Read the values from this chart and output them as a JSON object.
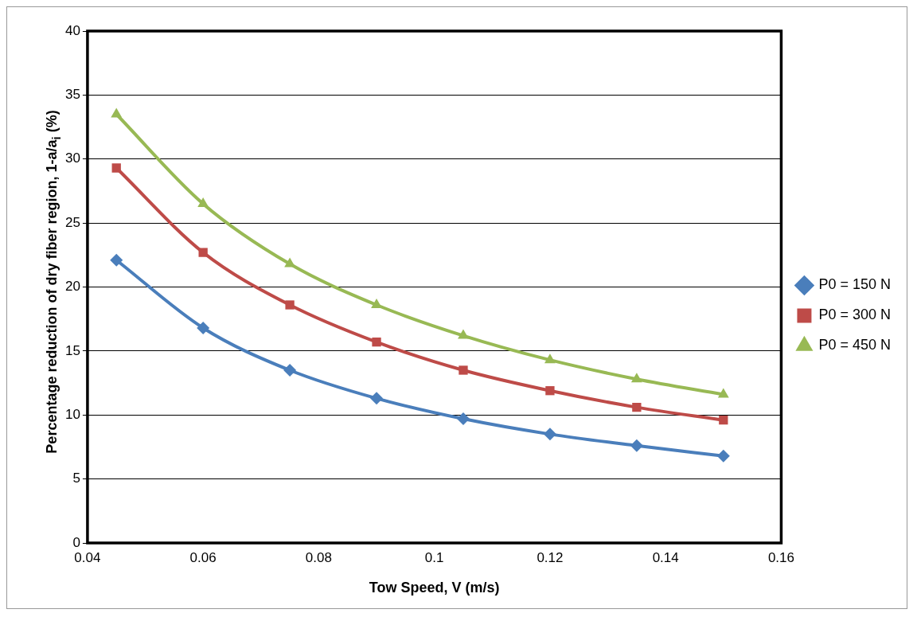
{
  "chart_data": {
    "type": "line",
    "xlabel": "Tow Speed, V (m/s)",
    "ylabel": "Percentage reduction of dry fiber region, 1-a/a$_{i}$ (%)",
    "x": [
      0.045,
      0.06,
      0.075,
      0.09,
      0.105,
      0.12,
      0.135,
      0.15
    ],
    "series": [
      {
        "name": "P0 = 150 N",
        "color": "#4a7ebb",
        "marker": "diamond",
        "values": [
          22.1,
          16.8,
          13.5,
          11.3,
          9.7,
          8.5,
          7.6,
          6.8
        ]
      },
      {
        "name": "P0 = 300 N",
        "color": "#be4b48",
        "marker": "square",
        "values": [
          29.3,
          22.7,
          18.6,
          15.7,
          13.5,
          11.9,
          10.6,
          9.6
        ]
      },
      {
        "name": "P0 = 450 N",
        "color": "#98b954",
        "marker": "triangle",
        "values": [
          33.5,
          26.5,
          21.8,
          18.6,
          16.2,
          14.3,
          12.8,
          11.6
        ]
      }
    ],
    "xlim": [
      0.04,
      0.16
    ],
    "xticks": [
      0.04,
      0.06,
      0.08,
      0.1,
      0.12,
      0.14,
      0.16
    ],
    "ylim": [
      0,
      40
    ],
    "yticks": [
      0,
      5,
      10,
      15,
      20,
      25,
      30,
      35,
      40
    ],
    "grid": "y",
    "legend": "right",
    "line_style": "solid"
  }
}
